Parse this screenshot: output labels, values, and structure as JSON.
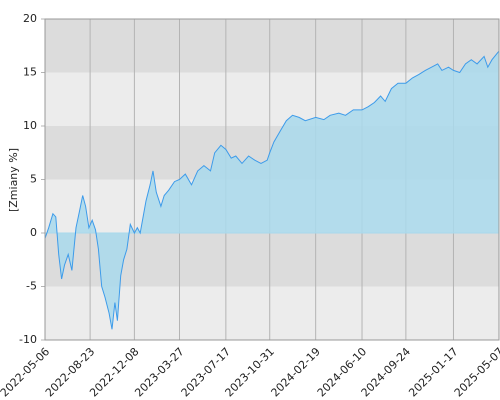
{
  "chart_data": {
    "type": "area-line",
    "y_label": "[Zmiany %]",
    "x": [
      "2022-05-06",
      "2022-05-15",
      "2022-05-25",
      "2022-06-01",
      "2022-06-08",
      "2022-06-15",
      "2022-06-22",
      "2022-07-01",
      "2022-07-10",
      "2022-07-20",
      "2022-07-28",
      "2022-08-05",
      "2022-08-12",
      "2022-08-20",
      "2022-08-28",
      "2022-09-05",
      "2022-09-12",
      "2022-09-20",
      "2022-09-28",
      "2022-10-08",
      "2022-10-15",
      "2022-10-22",
      "2022-10-28",
      "2022-11-05",
      "2022-11-12",
      "2022-11-20",
      "2022-11-28",
      "2022-12-08",
      "2022-12-15",
      "2022-12-22",
      "2023-01-05",
      "2023-01-15",
      "2023-01-22",
      "2023-01-30",
      "2023-02-10",
      "2023-02-18",
      "2023-03-01",
      "2023-03-15",
      "2023-03-27",
      "2023-04-10",
      "2023-04-25",
      "2023-05-10",
      "2023-05-25",
      "2023-06-10",
      "2023-06-20",
      "2023-07-05",
      "2023-07-17",
      "2023-07-30",
      "2023-08-10",
      "2023-08-25",
      "2023-09-10",
      "2023-09-25",
      "2023-10-10",
      "2023-10-25",
      "2023-10-31",
      "2023-11-10",
      "2023-11-25",
      "2023-12-10",
      "2023-12-25",
      "2024-01-10",
      "2024-01-25",
      "2024-02-19",
      "2024-03-10",
      "2024-03-25",
      "2024-04-15",
      "2024-05-01",
      "2024-05-20",
      "2024-06-10",
      "2024-06-25",
      "2024-07-10",
      "2024-07-25",
      "2024-08-05",
      "2024-08-20",
      "2024-09-05",
      "2024-09-24",
      "2024-10-10",
      "2024-10-25",
      "2024-11-10",
      "2024-11-25",
      "2024-12-10",
      "2024-12-20",
      "2025-01-05",
      "2025-01-17",
      "2025-02-01",
      "2025-02-15",
      "2025-03-01",
      "2025-03-15",
      "2025-04-01",
      "2025-04-10",
      "2025-04-20",
      "2025-05-07"
    ],
    "series": [
      {
        "color": "#3d9bea",
        "fill": "#a9d9ec",
        "values": [
          -0.5,
          0.5,
          1.8,
          1.5,
          -2,
          -4.3,
          -3,
          -2,
          -3.5,
          0.5,
          2,
          3.5,
          2.5,
          0.5,
          1.2,
          0.3,
          -1.5,
          -5,
          -6,
          -7.5,
          -9,
          -6.5,
          -8.2,
          -4,
          -2.5,
          -1.5,
          0.8,
          0,
          0.5,
          0,
          3,
          4.5,
          5.8,
          3.8,
          2.5,
          3.5,
          4,
          4.8,
          5,
          5.5,
          4.5,
          5.8,
          6.3,
          5.8,
          7.5,
          8.2,
          7.8,
          7,
          7.2,
          6.5,
          7.2,
          6.8,
          6.5,
          6.8,
          7.5,
          8.5,
          9.5,
          10.5,
          11,
          10.8,
          10.5,
          10.8,
          10.6,
          11,
          11.2,
          11,
          11.5,
          11.5,
          11.8,
          12.2,
          12.8,
          12.3,
          13.5,
          14,
          14,
          14.5,
          14.8,
          15.2,
          15.5,
          15.8,
          15.2,
          15.5,
          15.2,
          15,
          15.8,
          16.2,
          15.8,
          16.5,
          15.5,
          16.2,
          17
        ]
      }
    ],
    "xlim": [
      "2022-05-06",
      "2025-05-07"
    ],
    "xticks": [
      "2022-05-06",
      "2022-08-23",
      "2022-12-08",
      "2023-03-27",
      "2023-07-17",
      "2023-10-31",
      "2024-02-19",
      "2024-06-10",
      "2024-09-24",
      "2025-01-17",
      "2025-05-07"
    ],
    "ylim": [
      -10,
      20
    ],
    "yticks": [
      -10,
      -5,
      0,
      5,
      10,
      15,
      20
    ],
    "band_colors": [
      "#ececec",
      "#dcdcdc"
    ],
    "grid": true
  }
}
